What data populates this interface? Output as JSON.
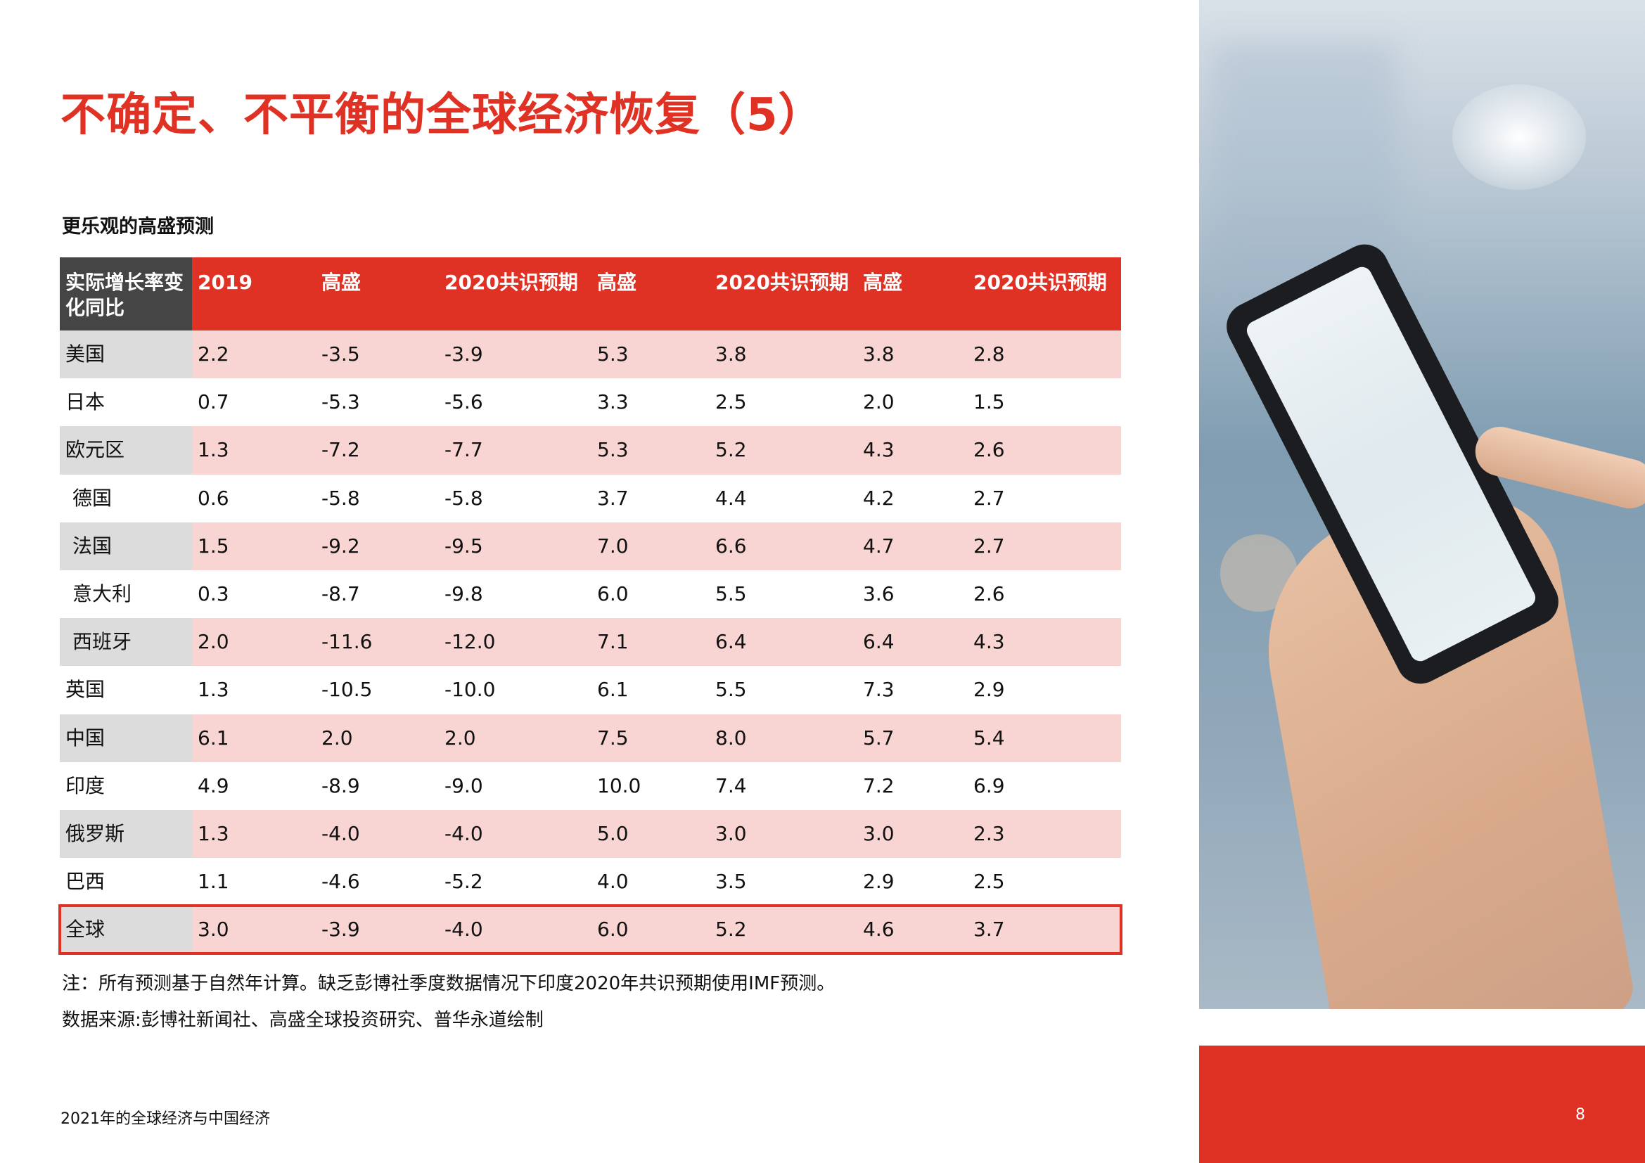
{
  "title": "不确定、不平衡的全球经济恢复（5）",
  "subtitle": "更乐观的高盛预测",
  "table": {
    "header": [
      "实际增长率变化同比",
      "2019",
      "高盛",
      "2020共识预期",
      "高盛",
      "2020共识预期",
      "高盛",
      "2020共识预期"
    ],
    "rows": [
      {
        "name": "美国",
        "values": [
          "2.2",
          "-3.5",
          "-3.9",
          "5.3",
          "3.8",
          "3.8",
          "2.8"
        ]
      },
      {
        "name": "日本",
        "values": [
          "0.7",
          "-5.3",
          "-5.6",
          "3.3",
          "2.5",
          "2.0",
          "1.5"
        ]
      },
      {
        "name": "欧元区",
        "values": [
          "1.3",
          "-7.2",
          "-7.7",
          "5.3",
          "5.2",
          "4.3",
          "2.6"
        ]
      },
      {
        "name": "德国",
        "values": [
          "0.6",
          "-5.8",
          "-5.8",
          "3.7",
          "4.4",
          "4.2",
          "2.7"
        ]
      },
      {
        "name": "法国",
        "values": [
          "1.5",
          "-9.2",
          "-9.5",
          "7.0",
          "6.6",
          "4.7",
          "2.7"
        ]
      },
      {
        "name": "意大利",
        "values": [
          "0.3",
          "-8.7",
          "-9.8",
          "6.0",
          "5.5",
          "3.6",
          "2.6"
        ]
      },
      {
        "name": "西班牙",
        "values": [
          "2.0",
          "-11.6",
          "-12.0",
          "7.1",
          "6.4",
          "6.4",
          "4.3"
        ]
      },
      {
        "name": "英国",
        "values": [
          "1.3",
          "-10.5",
          "-10.0",
          "6.1",
          "5.5",
          "7.3",
          "2.9"
        ]
      },
      {
        "name": "中国",
        "values": [
          "6.1",
          "2.0",
          "2.0",
          "7.5",
          "8.0",
          "5.7",
          "5.4"
        ]
      },
      {
        "name": "印度",
        "values": [
          "4.9",
          "-8.9",
          "-9.0",
          "10.0",
          "7.4",
          "7.2",
          "6.9"
        ]
      },
      {
        "name": "俄罗斯",
        "values": [
          "1.3",
          "-4.0",
          "-4.0",
          "5.0",
          "3.0",
          "3.0",
          "2.3"
        ]
      },
      {
        "name": "巴西",
        "values": [
          "1.1",
          "-4.6",
          "-5.2",
          "4.0",
          "3.5",
          "2.9",
          "2.5"
        ]
      },
      {
        "name": "全球",
        "values": [
          "3.0",
          "-3.9",
          "-4.0",
          "6.0",
          "5.2",
          "4.6",
          "3.7"
        ]
      }
    ]
  },
  "note": "注：所有预测基于自然年计算。缺乏彭博社季度数据情况下印度2020年共识预期使用IMF预测。",
  "source": "数据来源:彭博社新闻社、高盛全球投资研究、普华永道绘制",
  "footer": {
    "left": "2021年的全球经济与中国经济",
    "page": "8"
  },
  "colors": {
    "accent": "#e03224",
    "row_pink": "#f8d5d3",
    "header_dark": "#454545",
    "first_col": "#dcdcdc"
  }
}
